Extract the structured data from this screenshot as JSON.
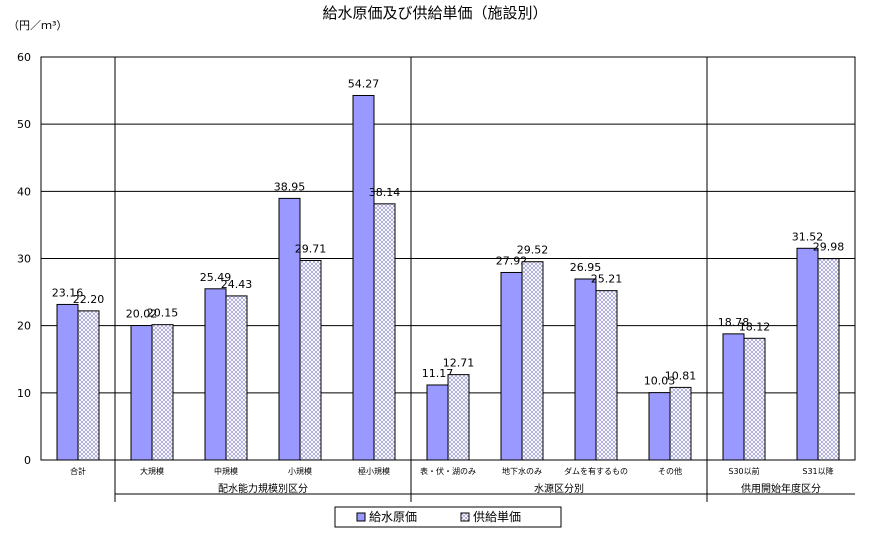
{
  "chart_data": {
    "type": "bar",
    "title": "給水原価及び供給単価（施設別）",
    "ylabel": "（円／ｍ³）",
    "ylim": [
      0,
      60
    ],
    "yticks": [
      0,
      10,
      20,
      30,
      40,
      50,
      60
    ],
    "grid": true,
    "legend_position": "bottom-center",
    "categories": [
      "合計",
      "大規模",
      "中規模",
      "小規模",
      "極小規模",
      "表・伏・湖のみ",
      "地下水のみ",
      "ダムを有するもの",
      "その他",
      "S30以前",
      "S31以降"
    ],
    "groups": [
      {
        "label": "配水能力規模別区分",
        "categories": [
          "大規模",
          "中規模",
          "小規模",
          "極小規模"
        ]
      },
      {
        "label": "水源区分別",
        "categories": [
          "表・伏・湖のみ",
          "地下水のみ",
          "ダムを有するもの",
          "その他"
        ]
      },
      {
        "label": "供用開始年度区分",
        "categories": [
          "S30以前",
          "S31以降"
        ]
      }
    ],
    "series": [
      {
        "name": "給水原価",
        "color": "#9999ff",
        "pattern": "solid",
        "values": [
          23.16,
          20.02,
          25.49,
          38.95,
          54.27,
          11.17,
          27.92,
          26.95,
          10.03,
          18.78,
          31.52
        ],
        "labels": [
          "23.16",
          "20.02",
          "25.49",
          "38.95",
          "54.27",
          "11.17",
          "27.92",
          "26.95",
          "10.03",
          "18.78",
          "31.52"
        ]
      },
      {
        "name": "供給単価",
        "color": "#ccccff",
        "pattern": "crosshatch",
        "values": [
          22.2,
          20.15,
          24.43,
          29.71,
          38.14,
          12.71,
          29.52,
          25.21,
          10.81,
          18.12,
          29.98
        ],
        "labels": [
          "22.20",
          "20.15",
          "24.43",
          "29.71",
          "38.14",
          "12.71",
          "29.52",
          "25.21",
          "10.81",
          "18.12",
          "29.98"
        ]
      }
    ]
  }
}
